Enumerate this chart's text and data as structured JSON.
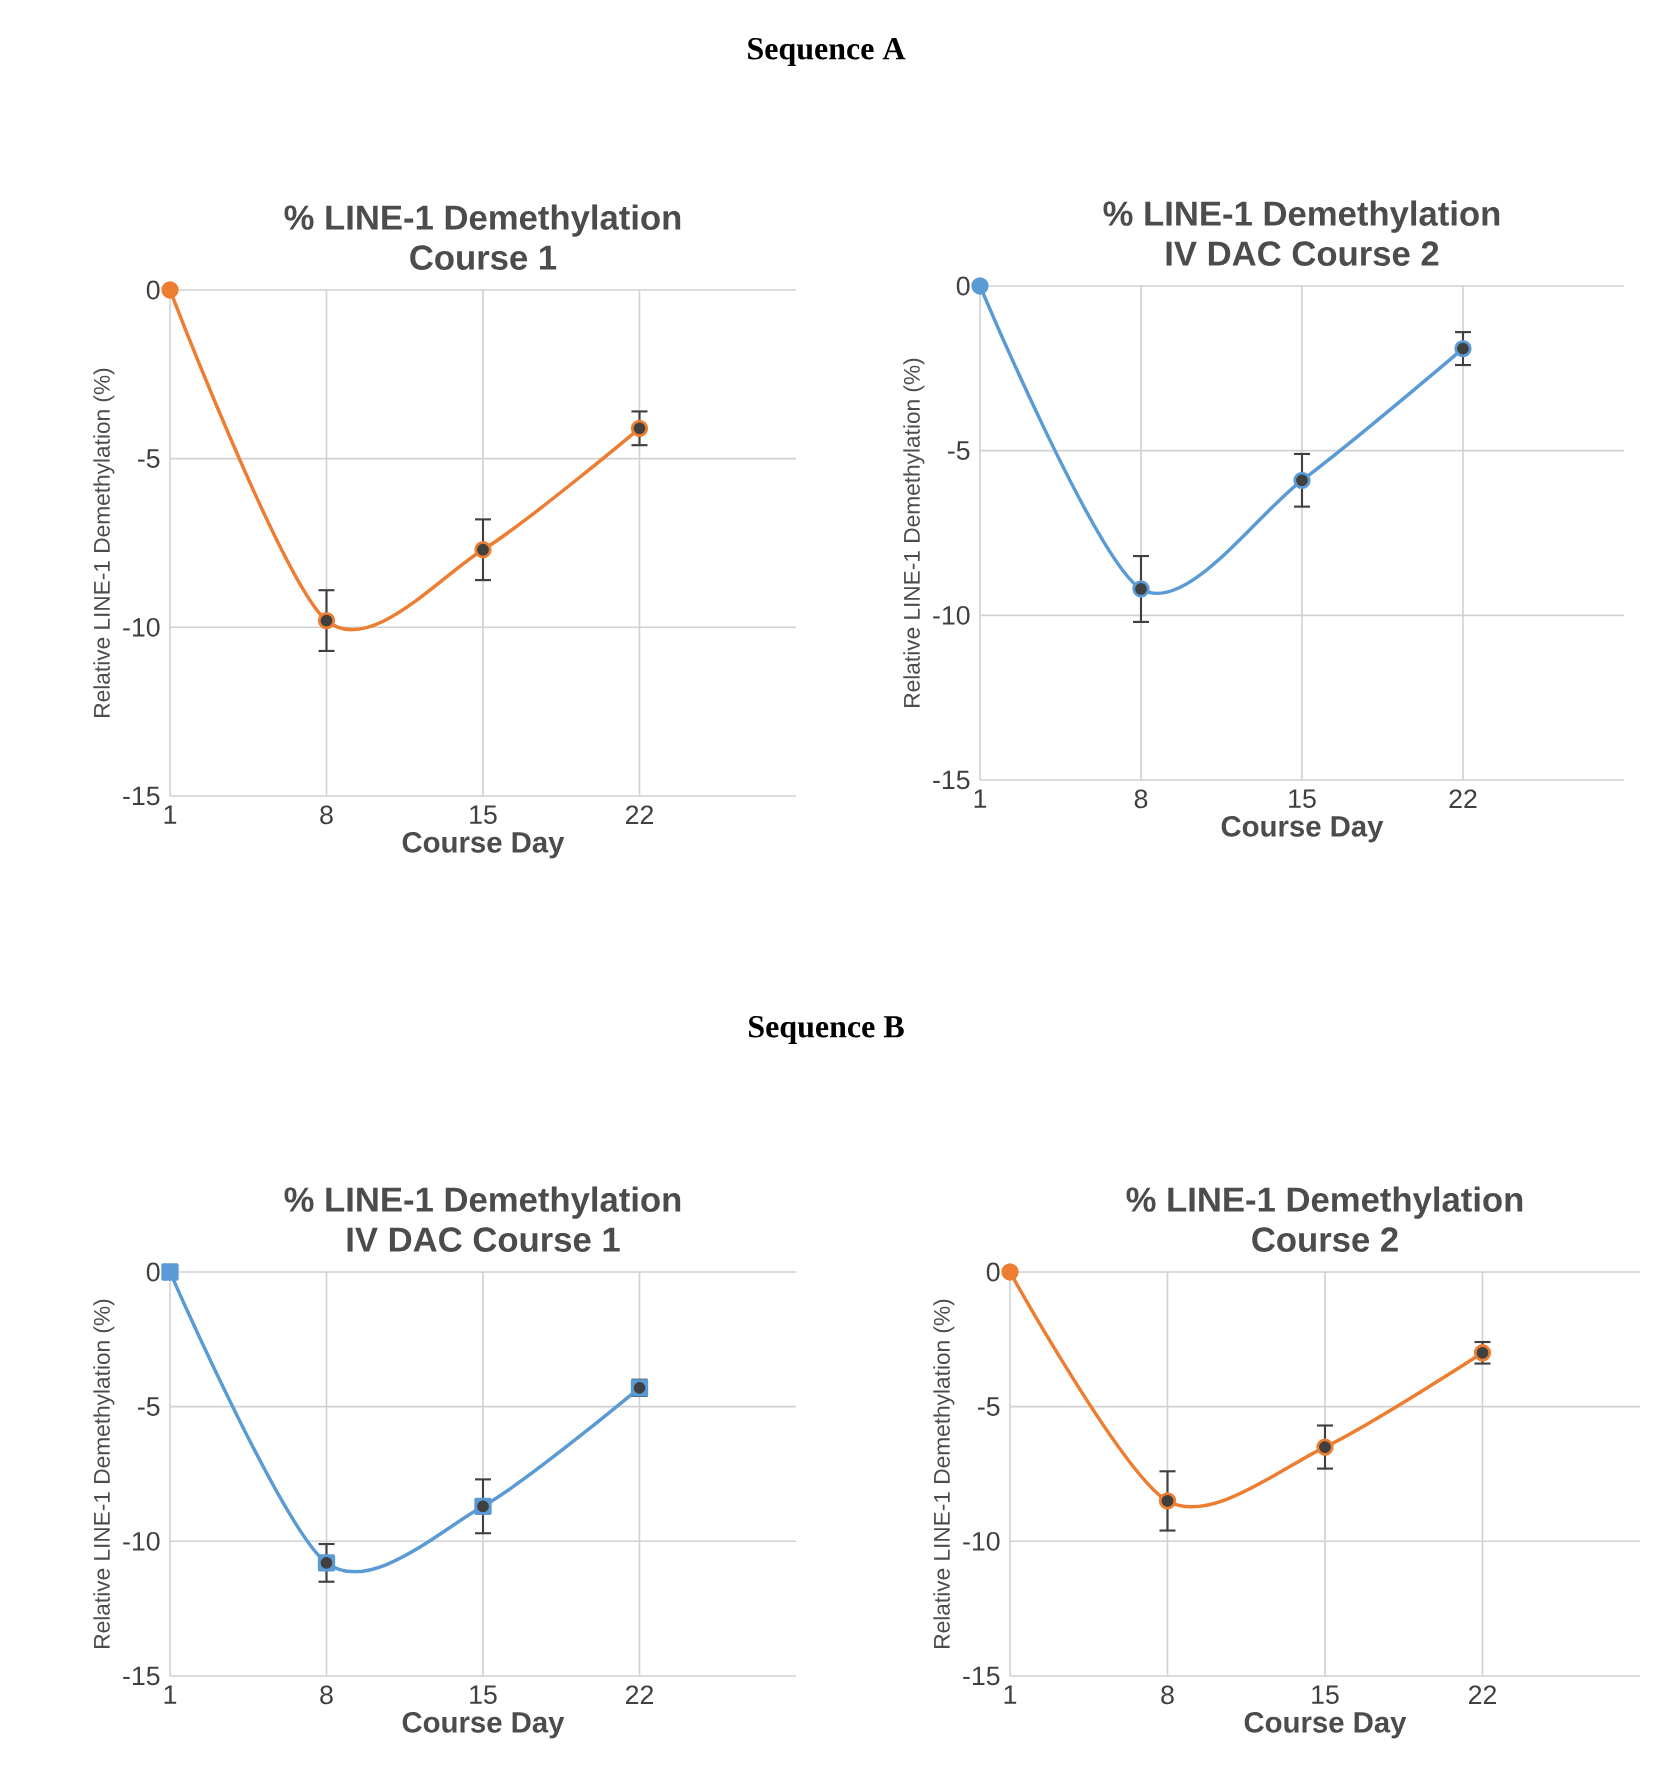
{
  "chart_data": [
    {
      "type": "line",
      "title": "% LINE-1 Demethylation",
      "subtitle": "Course 1",
      "annotations": [
        "Sequence A"
      ],
      "xlabel": "Course Day",
      "ylabel": "Relative LINE-1 Demethylation (%)",
      "x": [
        1,
        8,
        15,
        22
      ],
      "xlim": [
        1,
        29
      ],
      "xticks": [
        1,
        8,
        15,
        22
      ],
      "ylim": [
        -15,
        0
      ],
      "yticks": [
        -15,
        -10,
        -5,
        0
      ],
      "grid": true,
      "marker": "circle",
      "series": [
        {
          "color": "#ed7d31",
          "values": [
            0,
            -9.8,
            -7.7,
            -4.1
          ],
          "errors": [
            null,
            0.9,
            0.9,
            0.5
          ]
        }
      ]
    },
    {
      "type": "line",
      "title": "% LINE-1 Demethylation",
      "subtitle": "IV DAC Course 2",
      "xlabel": "Course Day",
      "ylabel": "Relative LINE-1 Demethylation (%)",
      "x": [
        1,
        8,
        15,
        22
      ],
      "xlim": [
        1,
        29
      ],
      "xticks": [
        1,
        8,
        15,
        22
      ],
      "ylim": [
        -15,
        0
      ],
      "yticks": [
        -15,
        -10,
        -5,
        0
      ],
      "grid": true,
      "marker": "circle",
      "series": [
        {
          "color": "#5b9bd5",
          "values": [
            0,
            -9.2,
            -5.9,
            -1.9
          ],
          "errors": [
            null,
            1.0,
            0.8,
            0.5
          ]
        }
      ]
    },
    {
      "type": "line",
      "title": "% LINE-1 Demethylation",
      "subtitle": "IV DAC Course 1",
      "annotations": [
        "Sequence B"
      ],
      "xlabel": "Course Day",
      "ylabel": "Relative LINE-1 Demethylation (%)",
      "x": [
        1,
        8,
        15,
        22
      ],
      "xlim": [
        1,
        29
      ],
      "xticks": [
        1,
        8,
        15,
        22
      ],
      "ylim": [
        -15,
        0
      ],
      "yticks": [
        -15,
        -10,
        -5,
        0
      ],
      "grid": true,
      "marker": "square",
      "series": [
        {
          "color": "#5b9bd5",
          "values": [
            0,
            -10.8,
            -8.7,
            -4.3
          ],
          "errors": [
            null,
            0.7,
            1.0,
            0.3
          ]
        }
      ]
    },
    {
      "type": "line",
      "title": "% LINE-1 Demethylation",
      "subtitle": "Course 2",
      "xlabel": "Course Day",
      "ylabel": "Relative LINE-1 Demethylation (%)",
      "x": [
        1,
        8,
        15,
        22
      ],
      "xlim": [
        1,
        29
      ],
      "xticks": [
        1,
        8,
        15,
        22
      ],
      "ylim": [
        -15,
        0
      ],
      "yticks": [
        -15,
        -10,
        -5,
        0
      ],
      "grid": true,
      "marker": "circle",
      "series": [
        {
          "color": "#ed7d31",
          "values": [
            0,
            -8.5,
            -6.5,
            -3.0
          ],
          "errors": [
            null,
            1.1,
            0.8,
            0.4
          ]
        }
      ]
    }
  ]
}
